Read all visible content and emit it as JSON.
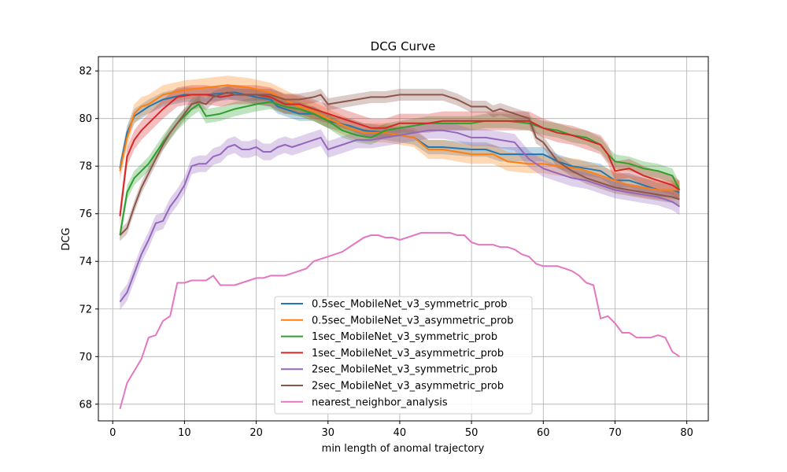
{
  "chart_data": {
    "type": "line",
    "title": "DCG Curve",
    "xlabel": "min length of anomal trajectory",
    "ylabel": "DCG",
    "xlim": [
      -2,
      83
    ],
    "ylim": [
      67.3,
      82.6
    ],
    "xticks": [
      0,
      10,
      20,
      30,
      40,
      50,
      60,
      70,
      80
    ],
    "yticks": [
      68,
      70,
      72,
      74,
      76,
      78,
      80,
      82
    ],
    "grid": true,
    "legend_position": "lower-center",
    "series": [
      {
        "name": "0.5sec_MobileNet_v3_symmetric_prob",
        "color": "#1f77b4",
        "band": 0.3,
        "x": [
          1,
          2,
          3,
          5,
          7,
          10,
          13,
          17,
          20,
          22,
          23,
          26,
          28,
          30,
          33,
          35,
          38,
          40,
          42,
          44,
          46,
          50,
          52,
          54,
          56,
          60,
          62,
          64,
          66,
          68,
          70,
          72,
          74,
          76,
          78,
          79
        ],
        "y": [
          77.9,
          79.4,
          80.1,
          80.5,
          80.8,
          81.0,
          81.0,
          81.1,
          80.9,
          80.8,
          80.5,
          80.2,
          80.2,
          79.9,
          79.7,
          79.5,
          79.4,
          79.3,
          79.2,
          78.8,
          78.8,
          78.7,
          78.7,
          78.5,
          78.5,
          78.5,
          78.2,
          78.0,
          77.9,
          77.8,
          77.4,
          77.4,
          77.2,
          77.0,
          77.0,
          76.9
        ]
      },
      {
        "name": "0.5sec_MobileNet_v3_asymmetric_prob",
        "color": "#ff7f0e",
        "band": 0.4,
        "x": [
          1,
          2,
          3,
          4,
          5,
          7,
          10,
          13,
          16,
          19,
          22,
          24,
          26,
          28,
          30,
          33,
          35,
          38,
          40,
          42,
          44,
          46,
          50,
          53,
          55,
          58,
          60,
          62,
          65,
          68,
          70,
          72,
          74,
          76,
          78,
          79
        ],
        "y": [
          77.8,
          79.2,
          80.2,
          80.5,
          80.6,
          81.0,
          81.2,
          81.3,
          81.4,
          81.3,
          81.1,
          80.8,
          80.5,
          80.3,
          80.0,
          79.6,
          79.4,
          79.4,
          79.3,
          79.2,
          78.7,
          78.7,
          78.5,
          78.5,
          78.2,
          78.1,
          78.1,
          78.0,
          77.9,
          77.6,
          77.4,
          77.2,
          77.1,
          77.0,
          77.0,
          77.0
        ]
      },
      {
        "name": "1sec_MobileNet_v3_symmetric_prob",
        "color": "#2ca02c",
        "band": 0.3,
        "x": [
          1,
          2,
          3,
          5,
          7,
          9,
          11,
          12,
          13,
          15,
          17,
          20,
          22,
          24,
          26,
          28,
          30,
          32,
          34,
          36,
          38,
          40,
          42,
          44,
          46,
          48,
          50,
          52,
          55,
          58,
          60,
          62,
          64,
          66,
          68,
          69,
          70,
          72,
          74,
          76,
          78,
          79
        ],
        "y": [
          75.1,
          76.9,
          77.5,
          78.1,
          79.0,
          79.8,
          80.4,
          80.6,
          80.1,
          80.2,
          80.4,
          80.6,
          80.7,
          80.5,
          80.4,
          80.2,
          79.9,
          79.5,
          79.3,
          79.2,
          79.5,
          79.6,
          79.7,
          79.8,
          79.8,
          79.8,
          79.8,
          79.9,
          79.9,
          79.8,
          79.6,
          79.5,
          79.3,
          79.2,
          78.9,
          78.5,
          78.2,
          78.1,
          77.9,
          77.8,
          77.6,
          77.0
        ]
      },
      {
        "name": "1sec_MobileNet_v3_asymmetric_prob",
        "color": "#d62728",
        "band": 0.4,
        "x": [
          1,
          2,
          3,
          4,
          5,
          7,
          9,
          11,
          13,
          15,
          17,
          20,
          22,
          24,
          26,
          28,
          30,
          32,
          34,
          36,
          38,
          40,
          42,
          44,
          46,
          48,
          50,
          52,
          55,
          58,
          60,
          62,
          64,
          66,
          68,
          69,
          70,
          72,
          74,
          76,
          78,
          79
        ],
        "y": [
          75.9,
          78.4,
          79.1,
          79.5,
          79.8,
          80.4,
          80.9,
          81.0,
          81.0,
          80.9,
          81.0,
          81.0,
          80.9,
          80.6,
          80.6,
          80.4,
          80.2,
          80.0,
          79.8,
          79.6,
          79.6,
          79.8,
          79.8,
          79.8,
          79.9,
          79.9,
          79.9,
          79.9,
          79.9,
          79.9,
          79.6,
          79.4,
          79.3,
          79.1,
          78.9,
          78.5,
          77.8,
          77.9,
          77.6,
          77.4,
          77.2,
          77.0
        ]
      },
      {
        "name": "2sec_MobileNet_v3_symmetric_prob",
        "color": "#9467bd",
        "band": 0.35,
        "x": [
          1,
          2,
          3,
          4,
          5,
          6,
          7,
          8,
          9,
          10,
          11,
          12,
          13,
          14,
          15,
          16,
          17,
          18,
          19,
          20,
          21,
          22,
          23,
          24,
          25,
          26,
          27,
          28,
          29,
          30,
          32,
          34,
          36,
          38,
          40,
          42,
          44,
          46,
          48,
          50,
          52,
          54,
          56,
          58,
          60,
          61,
          62,
          64,
          66,
          68,
          70,
          72,
          74,
          76,
          78,
          79
        ],
        "y": [
          72.3,
          72.7,
          73.5,
          74.3,
          74.9,
          75.6,
          75.7,
          76.3,
          76.7,
          77.2,
          78.0,
          78.1,
          78.1,
          78.4,
          78.5,
          78.8,
          78.9,
          78.7,
          78.7,
          78.8,
          78.6,
          78.6,
          78.8,
          78.9,
          78.8,
          78.9,
          79.0,
          79.1,
          79.2,
          78.7,
          78.9,
          79.1,
          79.1,
          79.2,
          79.3,
          79.4,
          79.5,
          79.5,
          79.4,
          79.2,
          79.2,
          79.1,
          79.0,
          78.3,
          77.9,
          77.8,
          77.7,
          77.5,
          77.4,
          77.2,
          77.0,
          76.9,
          76.8,
          76.7,
          76.5,
          76.3
        ]
      },
      {
        "name": "2sec_MobileNet_v3_asymmetric_prob",
        "color": "#8c564b",
        "band": 0.25,
        "x": [
          1,
          2,
          3,
          4,
          5,
          6,
          7,
          8,
          9,
          10,
          11,
          12,
          13,
          14,
          15,
          16,
          17,
          18,
          20,
          22,
          24,
          26,
          28,
          29,
          30,
          32,
          34,
          36,
          38,
          40,
          42,
          44,
          46,
          48,
          50,
          52,
          53,
          54,
          56,
          58,
          59,
          60,
          62,
          64,
          66,
          68,
          70,
          72,
          74,
          76,
          78,
          79
        ],
        "y": [
          75.1,
          75.4,
          76.3,
          77.1,
          77.7,
          78.3,
          78.9,
          79.4,
          79.8,
          80.2,
          80.6,
          80.7,
          80.6,
          80.9,
          81.0,
          81.1,
          81.0,
          81.0,
          81.0,
          81.0,
          80.8,
          80.8,
          80.9,
          81.0,
          80.6,
          80.7,
          80.8,
          80.9,
          80.9,
          81.0,
          81.0,
          81.0,
          81.0,
          80.8,
          80.5,
          80.5,
          80.3,
          80.4,
          80.2,
          80.0,
          79.2,
          79.0,
          78.2,
          77.8,
          77.5,
          77.3,
          77.1,
          77.0,
          76.9,
          76.8,
          76.7,
          76.6
        ]
      },
      {
        "name": "nearest_neighbor_analysis",
        "color": "#e377c2",
        "band": 0,
        "x": [
          1,
          2,
          3,
          4,
          5,
          6,
          7,
          8,
          9,
          10,
          11,
          12,
          13,
          14,
          15,
          16,
          17,
          18,
          19,
          20,
          21,
          22,
          23,
          24,
          25,
          26,
          27,
          28,
          29,
          30,
          32,
          34,
          35,
          36,
          37,
          38,
          39,
          40,
          41,
          42,
          43,
          44,
          45,
          46,
          47,
          48,
          49,
          50,
          51,
          52,
          53,
          54,
          55,
          56,
          57,
          58,
          59,
          60,
          61,
          62,
          63,
          64,
          65,
          66,
          67,
          68,
          69,
          70,
          71,
          72,
          73,
          74,
          75,
          76,
          77,
          78,
          79
        ],
        "y": [
          67.8,
          68.9,
          69.4,
          69.9,
          70.8,
          70.9,
          71.5,
          71.7,
          73.1,
          73.1,
          73.2,
          73.2,
          73.2,
          73.4,
          73.0,
          73.0,
          73.0,
          73.1,
          73.2,
          73.3,
          73.3,
          73.4,
          73.4,
          73.4,
          73.5,
          73.6,
          73.7,
          74.0,
          74.1,
          74.2,
          74.4,
          74.8,
          75.0,
          75.1,
          75.1,
          75.0,
          75.0,
          74.9,
          75.0,
          75.1,
          75.2,
          75.2,
          75.2,
          75.2,
          75.2,
          75.1,
          75.1,
          74.8,
          74.7,
          74.7,
          74.7,
          74.6,
          74.6,
          74.5,
          74.3,
          74.2,
          73.9,
          73.8,
          73.8,
          73.8,
          73.7,
          73.6,
          73.4,
          73.1,
          73.0,
          71.6,
          71.7,
          71.4,
          71.0,
          71.0,
          70.8,
          70.8,
          70.8,
          70.9,
          70.8,
          70.2,
          70.0
        ]
      }
    ]
  }
}
